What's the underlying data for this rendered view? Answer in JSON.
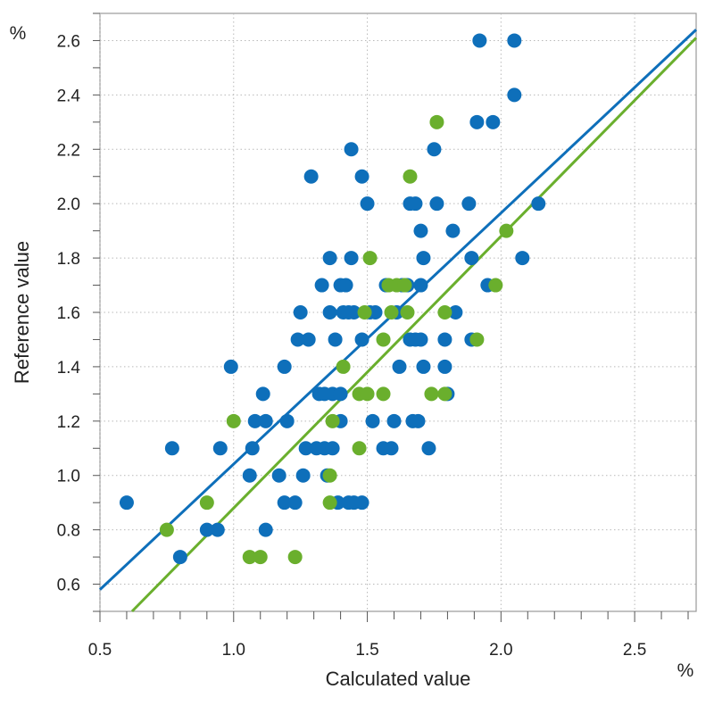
{
  "chart_data": {
    "type": "scatter",
    "xlabel": "Calculated value",
    "ylabel": "Reference value",
    "x_unit": "%",
    "y_unit": "%",
    "xlim": [
      0.5,
      2.73
    ],
    "ylim": [
      0.5,
      2.7
    ],
    "x_ticks": [
      0.5,
      1.0,
      1.5,
      2.0,
      2.5
    ],
    "x_tick_labels": [
      "0.5",
      "1.0",
      "1.5",
      "2.0",
      "2.5"
    ],
    "y_ticks": [
      0.6,
      0.8,
      1.0,
      1.2,
      1.4,
      1.6,
      1.8,
      2.0,
      2.2,
      2.4,
      2.6
    ],
    "y_tick_labels": [
      "0.6",
      "0.8",
      "1.0",
      "1.2",
      "1.4",
      "1.6",
      "1.8",
      "2.0",
      "2.2",
      "2.4",
      "2.6"
    ],
    "grid": true,
    "legend": "none",
    "series": [
      {
        "color": "#0e6fba",
        "fit_line": [
          [
            0.5,
            0.58
          ],
          [
            2.73,
            2.64
          ]
        ],
        "points": [
          [
            0.6,
            0.9
          ],
          [
            0.77,
            1.1
          ],
          [
            0.8,
            0.7
          ],
          [
            0.9,
            0.8
          ],
          [
            0.94,
            0.8
          ],
          [
            0.95,
            1.1
          ],
          [
            0.99,
            1.4
          ],
          [
            1.06,
            1.0
          ],
          [
            1.07,
            1.1
          ],
          [
            1.08,
            1.2
          ],
          [
            1.11,
            1.3
          ],
          [
            1.12,
            1.2
          ],
          [
            1.12,
            0.8
          ],
          [
            1.17,
            1.0
          ],
          [
            1.19,
            0.9
          ],
          [
            1.19,
            1.4
          ],
          [
            1.2,
            1.2
          ],
          [
            1.23,
            0.9
          ],
          [
            1.24,
            1.5
          ],
          [
            1.25,
            1.6
          ],
          [
            1.26,
            1.0
          ],
          [
            1.27,
            1.1
          ],
          [
            1.28,
            1.5
          ],
          [
            1.29,
            2.1
          ],
          [
            1.31,
            1.1
          ],
          [
            1.32,
            1.3
          ],
          [
            1.33,
            1.7
          ],
          [
            1.34,
            1.1
          ],
          [
            1.34,
            1.3
          ],
          [
            1.35,
            1.0
          ],
          [
            1.36,
            1.6
          ],
          [
            1.36,
            1.8
          ],
          [
            1.37,
            1.1
          ],
          [
            1.37,
            1.3
          ],
          [
            1.38,
            1.5
          ],
          [
            1.39,
            0.9
          ],
          [
            1.4,
            1.2
          ],
          [
            1.4,
            1.3
          ],
          [
            1.4,
            1.7
          ],
          [
            1.41,
            1.6
          ],
          [
            1.42,
            1.7
          ],
          [
            1.43,
            0.9
          ],
          [
            1.43,
            1.6
          ],
          [
            1.44,
            2.2
          ],
          [
            1.44,
            1.8
          ],
          [
            1.45,
            0.9
          ],
          [
            1.45,
            1.6
          ],
          [
            1.48,
            0.9
          ],
          [
            1.48,
            1.5
          ],
          [
            1.48,
            2.1
          ],
          [
            1.5,
            2.0
          ],
          [
            1.51,
            1.6
          ],
          [
            1.52,
            1.2
          ],
          [
            1.53,
            1.6
          ],
          [
            1.56,
            1.1
          ],
          [
            1.57,
            1.7
          ],
          [
            1.59,
            1.1
          ],
          [
            1.6,
            1.2
          ],
          [
            1.61,
            1.6
          ],
          [
            1.62,
            1.4
          ],
          [
            1.63,
            1.7
          ],
          [
            1.65,
            1.7
          ],
          [
            1.66,
            2.0
          ],
          [
            1.66,
            1.5
          ],
          [
            1.67,
            1.2
          ],
          [
            1.68,
            2.0
          ],
          [
            1.68,
            1.5
          ],
          [
            1.69,
            1.2
          ],
          [
            1.7,
            1.9
          ],
          [
            1.7,
            1.5
          ],
          [
            1.7,
            1.7
          ],
          [
            1.71,
            1.8
          ],
          [
            1.71,
            1.4
          ],
          [
            1.73,
            1.1
          ],
          [
            1.75,
            2.2
          ],
          [
            1.76,
            2.0
          ],
          [
            1.79,
            1.5
          ],
          [
            1.79,
            1.4
          ],
          [
            1.8,
            1.3
          ],
          [
            1.82,
            1.9
          ],
          [
            1.83,
            1.6
          ],
          [
            1.88,
            2.0
          ],
          [
            1.89,
            1.8
          ],
          [
            1.89,
            1.5
          ],
          [
            1.91,
            2.3
          ],
          [
            1.92,
            2.6
          ],
          [
            1.95,
            1.7
          ],
          [
            1.97,
            2.3
          ],
          [
            2.05,
            2.4
          ],
          [
            2.05,
            2.6
          ],
          [
            2.08,
            1.8
          ],
          [
            2.14,
            2.0
          ]
        ]
      },
      {
        "color": "#6aaf2d",
        "fit_line": [
          [
            0.62,
            0.5
          ],
          [
            2.73,
            2.61
          ]
        ],
        "points": [
          [
            0.75,
            0.8
          ],
          [
            0.9,
            0.9
          ],
          [
            1.0,
            1.2
          ],
          [
            1.06,
            0.7
          ],
          [
            1.1,
            0.7
          ],
          [
            1.23,
            0.7
          ],
          [
            1.36,
            1.0
          ],
          [
            1.36,
            0.9
          ],
          [
            1.37,
            1.2
          ],
          [
            1.41,
            1.4
          ],
          [
            1.47,
            1.1
          ],
          [
            1.47,
            1.3
          ],
          [
            1.49,
            1.6
          ],
          [
            1.51,
            1.8
          ],
          [
            1.5,
            1.3
          ],
          [
            1.56,
            1.3
          ],
          [
            1.56,
            1.5
          ],
          [
            1.58,
            1.7
          ],
          [
            1.59,
            1.6
          ],
          [
            1.61,
            1.7
          ],
          [
            1.64,
            1.7
          ],
          [
            1.65,
            1.6
          ],
          [
            1.66,
            2.1
          ],
          [
            1.74,
            1.3
          ],
          [
            1.76,
            2.3
          ],
          [
            1.79,
            1.6
          ],
          [
            1.79,
            1.3
          ],
          [
            1.91,
            1.5
          ],
          [
            1.98,
            1.7
          ],
          [
            2.02,
            1.9
          ]
        ]
      }
    ]
  }
}
